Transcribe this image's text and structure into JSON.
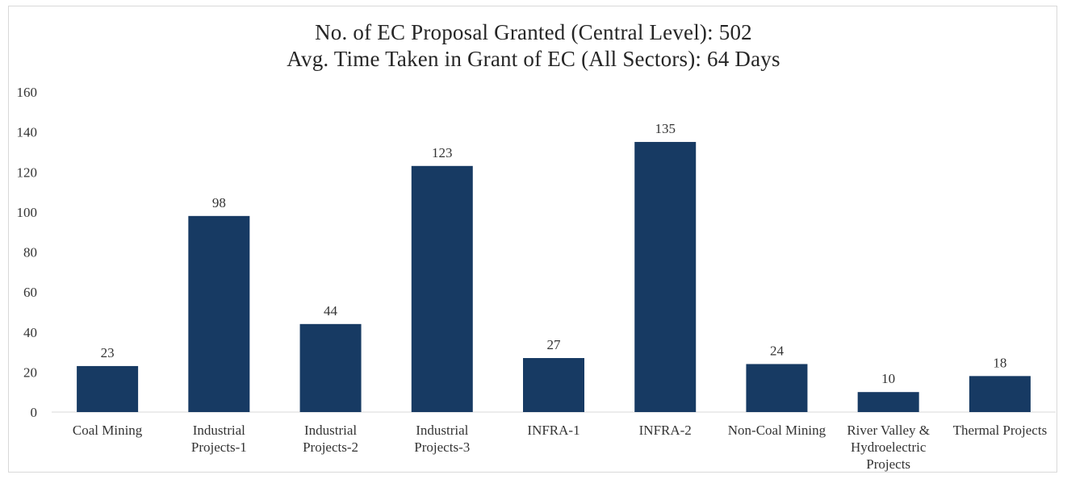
{
  "chart_data": {
    "type": "bar",
    "title": "No. of EC Proposal Granted (Central Level): 502",
    "subtitle": "Avg. Time Taken in Grant of EC (All Sectors): 64 Days",
    "categories": [
      [
        "Coal Mining"
      ],
      [
        "Industrial",
        "Projects-1"
      ],
      [
        "Industrial",
        "Projects-2"
      ],
      [
        "Industrial",
        "Projects-3"
      ],
      [
        "INFRA-1"
      ],
      [
        "INFRA-2"
      ],
      [
        "Non-Coal Mining"
      ],
      [
        "River Valley &",
        "Hydroelectric",
        "Projects"
      ],
      [
        "Thermal Projects"
      ]
    ],
    "values": [
      23,
      98,
      44,
      123,
      27,
      135,
      24,
      10,
      18
    ],
    "ylim": [
      0,
      160
    ],
    "yticks": [
      0,
      20,
      40,
      60,
      80,
      100,
      120,
      140,
      160
    ],
    "grid": false,
    "bar_color": "#173a63"
  }
}
